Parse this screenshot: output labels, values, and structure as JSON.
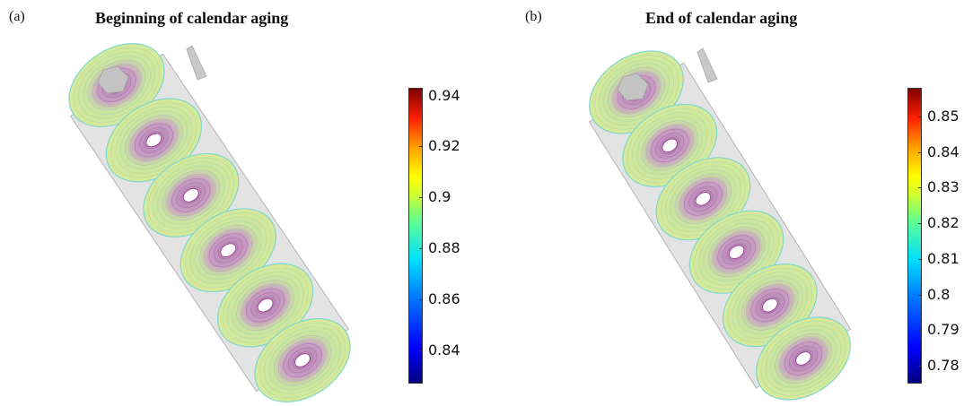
{
  "panels": [
    {
      "letter": "(a)",
      "title": "Beginning of calendar aging",
      "colorbar": {
        "min": 0.827,
        "max": 0.943,
        "ticks": [
          "0.94",
          "0.92",
          "0.9",
          "0.88",
          "0.86",
          "0.84"
        ],
        "tick_values": [
          0.94,
          0.92,
          0.9,
          0.88,
          0.86,
          0.84
        ],
        "colormap": "rainbow (dark blue to dark red)"
      }
    },
    {
      "letter": "(b)",
      "title": "End of calendar aging",
      "colorbar": {
        "min": 0.775,
        "max": 0.858,
        "ticks": [
          "0.85",
          "0.84",
          "0.83",
          "0.82",
          "0.81",
          "0.8",
          "0.79",
          "0.78"
        ],
        "tick_values": [
          0.85,
          0.84,
          0.83,
          0.82,
          0.81,
          0.8,
          0.79,
          0.78
        ],
        "colormap": "rainbow (dark blue to dark red)"
      }
    }
  ],
  "colors": {
    "cylinder_fill": "#e3e3e3",
    "cylinder_edge": "#b5b5b5",
    "disc_outer": "#d8ea9a",
    "disc_mid": "#c7e3a0",
    "disc_inner": "#b98ab8",
    "disc_center": "#ffffff",
    "terminal": "#bdbdbd"
  }
}
